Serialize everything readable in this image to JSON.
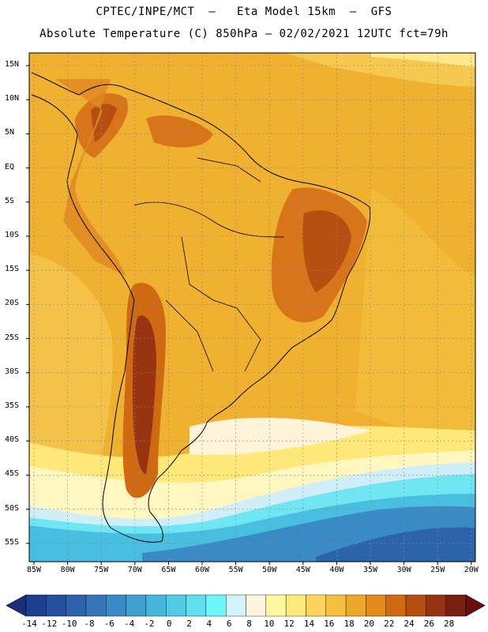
{
  "header": {
    "line1": "CPTEC/INPE/MCT  –   Eta Model 15km  –  GFS",
    "line2": "Absolute Temperature (C) 850hPa – 02/02/2021 12UTC fct=79h"
  },
  "map": {
    "lat_labels": [
      "15N",
      "10N",
      "5N",
      "EQ",
      "5S",
      "10S",
      "15S",
      "20S",
      "25S",
      "30S",
      "35S",
      "40S",
      "45S",
      "50S",
      "55S"
    ],
    "lon_labels": [
      "85W",
      "80W",
      "75W",
      "70W",
      "65W",
      "60W",
      "55W",
      "50W",
      "45W",
      "40W",
      "35W",
      "30W",
      "25W",
      "20W"
    ]
  },
  "colorbar": {
    "labels": [
      "-14",
      "-12",
      "-10",
      "-8",
      "-6",
      "-4",
      "-2",
      "0",
      "2",
      "4",
      "6",
      "8",
      "10",
      "12",
      "14",
      "16",
      "18",
      "20",
      "22",
      "24",
      "26",
      "28"
    ],
    "colors": [
      "#1f3f8f",
      "#26509c",
      "#2c63ab",
      "#3476b8",
      "#3a8ac6",
      "#40a0cf",
      "#48b6db",
      "#52cbe6",
      "#5fdff0",
      "#6ef5fa",
      "#d2f4fa",
      "#fff6e0",
      "#fff7a0",
      "#ffe97a",
      "#ffd45a",
      "#f5be3f",
      "#eea828",
      "#e38a1a",
      "#cf6a12",
      "#b54e10",
      "#983412",
      "#7a2012"
    ]
  }
}
